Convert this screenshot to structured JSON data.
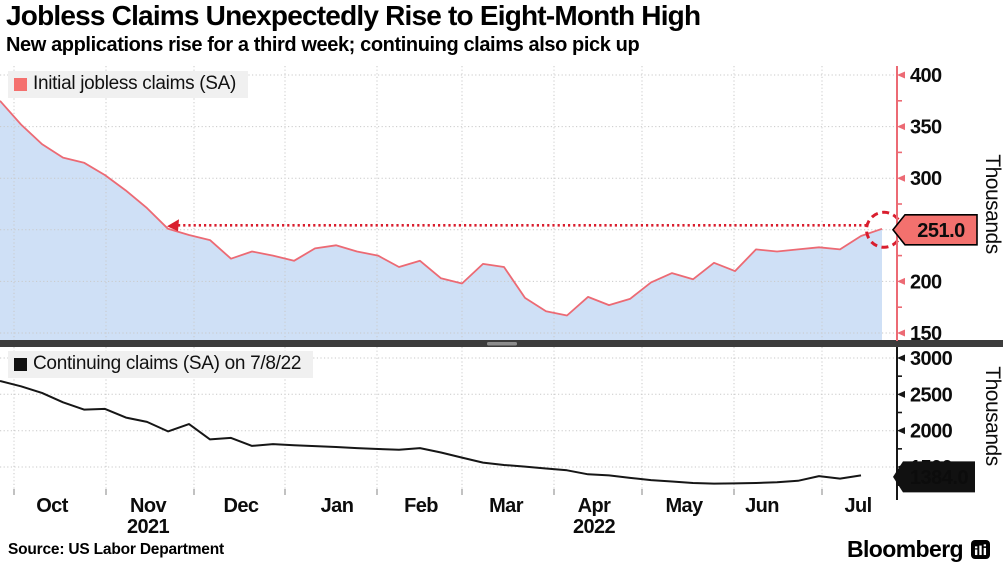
{
  "header": {
    "title": "Jobless Claims Unexpectedly Rise to Eight-Month High",
    "subtitle": "New applications rise for a third week; continuing claims also pick up"
  },
  "footer": {
    "source": "Source: US Labor Department",
    "brand": "Bloomberg",
    "brand_icon": "bloomberg-terminal-icon"
  },
  "colors": {
    "initial_line": "#ec6a74",
    "initial_fill": "#cfe0f6",
    "initial_axis": "#ec6a74",
    "legend_swatch_initial": "#f4706e",
    "legend_swatch_continuing": "#111111",
    "badge_top_fill": "#f3716e",
    "badge_top_text": "#000000",
    "annotation_red": "#d91e2e",
    "continuing_line": "#161616",
    "continuing_axis": "#161616",
    "badge_bottom_fill": "#111111",
    "badge_bottom_text": "#ffffff",
    "grid": "#c9c9c9",
    "legend_bg": "#f0f0f0",
    "separator": "#3c3c3c",
    "separator_handle": "#8c8c8c",
    "text": "#000000"
  },
  "x_axis": {
    "month_labels": [
      "Oct",
      "Nov",
      "Dec",
      "Jan",
      "Feb",
      "Mar",
      "Apr",
      "May",
      "Jun",
      "Jul"
    ],
    "year_labels": [
      {
        "text": "2021",
        "month_index": 1
      },
      {
        "text": "2022",
        "month_index": 6
      }
    ]
  },
  "chart_data": [
    {
      "type": "area",
      "legend": "Initial jobless claims (SA)",
      "ylabel": "Thousands",
      "yticks": [
        150,
        200,
        250,
        300,
        350,
        400
      ],
      "yticks_minor": [
        175,
        225,
        275,
        325,
        375
      ],
      "ylim": [
        143,
        408
      ],
      "x_range": "late Sep 2021 - mid Jul 2022, weekly",
      "latest_label": "251.0",
      "latest_value": 251.0,
      "annotation": "Dotted red arrow at the 251 level pointing back to mid-November 2021 (last time claims were this high); dashed red circle around the latest point",
      "arrow_target_index": 8,
      "values": [
        375,
        352,
        333,
        320,
        315,
        303,
        288,
        271,
        251,
        245,
        240,
        222,
        229,
        225,
        220,
        232,
        235,
        229,
        225,
        214,
        220,
        203,
        198,
        217,
        214,
        184,
        171,
        167,
        185,
        177,
        183,
        199,
        208,
        202,
        218,
        210,
        231,
        229,
        231,
        233,
        231,
        244,
        251
      ]
    },
    {
      "type": "line",
      "legend": "Continuing claims (SA) on 7/8/22",
      "ylabel": "Thousands",
      "yticks": [
        1500,
        2000,
        2500,
        3000
      ],
      "yticks_minor": [
        1250,
        1750,
        2250,
        2750
      ],
      "ylim": [
        1184,
        3150
      ],
      "x_range": "late Sep 2021 - 7/8/22, weekly",
      "latest_label": "1384.0",
      "latest_value": 1384.0,
      "values": [
        2684,
        2610,
        2520,
        2390,
        2290,
        2300,
        2180,
        2120,
        1990,
        2090,
        1880,
        1900,
        1790,
        1815,
        1800,
        1788,
        1775,
        1760,
        1748,
        1738,
        1760,
        1700,
        1630,
        1560,
        1528,
        1505,
        1480,
        1455,
        1400,
        1385,
        1350,
        1320,
        1300,
        1280,
        1272,
        1275,
        1280,
        1290,
        1310,
        1375,
        1340,
        1384
      ]
    }
  ]
}
